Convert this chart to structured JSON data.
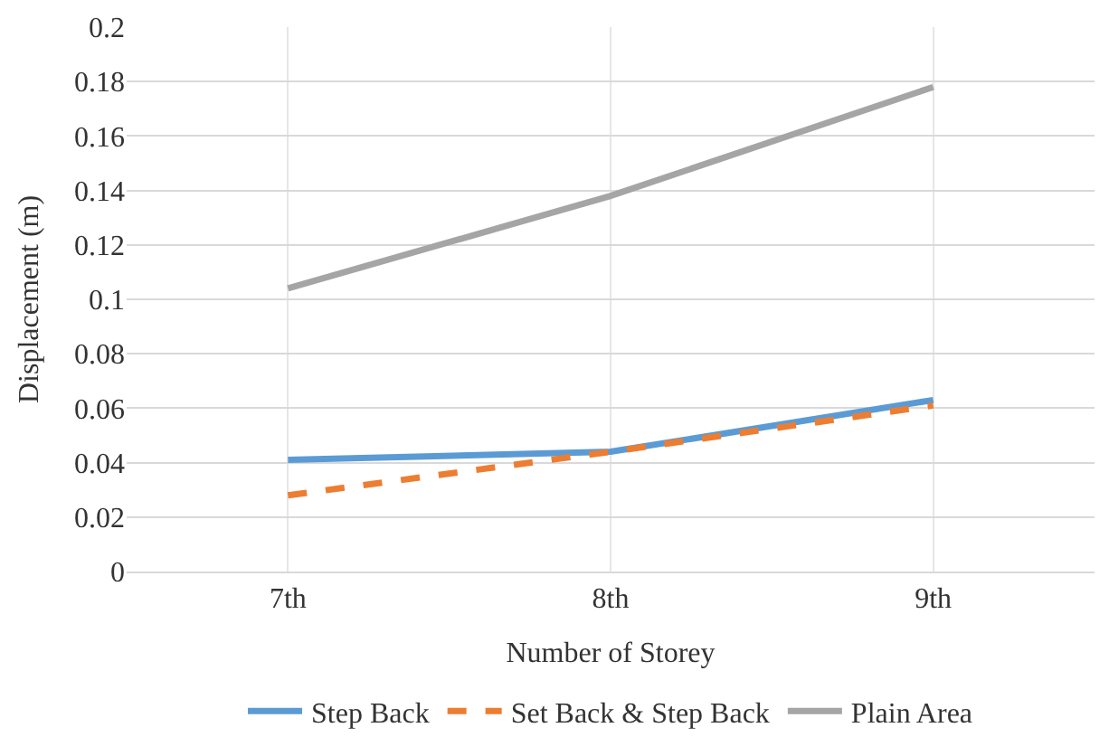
{
  "chart_data": {
    "type": "line",
    "xlabel": "Number of Storey",
    "ylabel": "Displacement (m)",
    "categories": [
      "7th",
      "8th",
      "9th"
    ],
    "series": [
      {
        "name": "Step Back",
        "color": "#5b9bd5",
        "values": [
          0.041,
          0.044,
          0.063
        ],
        "line_style": "solid"
      },
      {
        "name": "Set Back & Step Back",
        "color": "#ed7d31",
        "values": [
          0.028,
          0.044,
          0.061
        ],
        "line_style": "dashed"
      },
      {
        "name": "Plain Area",
        "color": "#a5a5a5",
        "values": [
          0.104,
          0.138,
          0.178
        ],
        "line_style": "solid"
      }
    ],
    "ylim": [
      0,
      0.2
    ],
    "yticks": [
      0,
      0.02,
      0.04,
      0.06,
      0.08,
      0.1,
      0.12,
      0.14,
      0.16,
      0.18,
      0.2
    ],
    "grid": true,
    "legend": "bottom",
    "marker": "none"
  }
}
